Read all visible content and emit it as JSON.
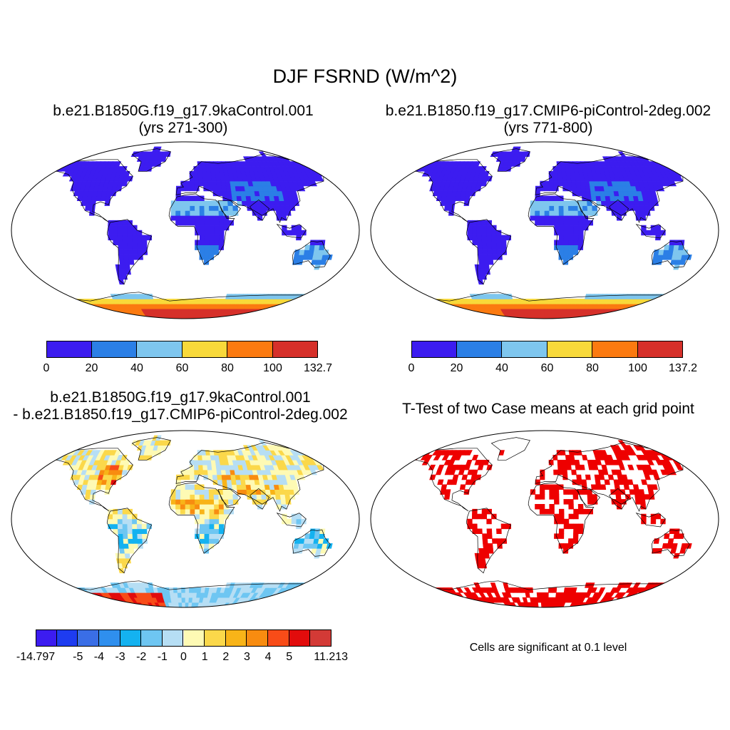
{
  "title": "DJF FSRND (W/m^2)",
  "panels": {
    "case1": {
      "title_line1": "b.e21.B1850G.f19_g17.9kaControl.001",
      "title_line2": "(yrs 271-300)",
      "colorbar": {
        "colors": [
          "#3c1cf0",
          "#2b7fe6",
          "#7ec6ee",
          "#f8d93a",
          "#fb7a10",
          "#d6302a"
        ],
        "ticks": [
          "0",
          "20",
          "40",
          "60",
          "80",
          "100",
          "132.7"
        ]
      }
    },
    "case2": {
      "title_line1": "b.e21.B1850.f19_g17.CMIP6-piControl-2deg.002",
      "title_line2": "(yrs 771-800)",
      "colorbar": {
        "colors": [
          "#3c1cf0",
          "#2b7fe6",
          "#7ec6ee",
          "#f8d93a",
          "#fb7a10",
          "#d6302a"
        ],
        "ticks": [
          "0",
          "20",
          "40",
          "60",
          "80",
          "100",
          "137.2"
        ]
      }
    },
    "diff": {
      "title_line1": "b.e21.B1850G.f19_g17.9kaControl.001",
      "title_line2": "- b.e21.B1850.f19_g17.CMIP6-piControl-2deg.002",
      "colorbar": {
        "colors": [
          "#3c1cf0",
          "#1e3cf0",
          "#3a6ee6",
          "#2f8fee",
          "#14b2f0",
          "#6ec6f2",
          "#b6def4",
          "#fefab4",
          "#fbd84a",
          "#f8b418",
          "#f88c10",
          "#f84c18",
          "#e20c0c",
          "#d33a36"
        ],
        "ticks": [
          "-14.797",
          "-5",
          "-4",
          "-3",
          "-2",
          "-1",
          "0",
          "1",
          "2",
          "3",
          "4",
          "5",
          "11.213"
        ]
      }
    },
    "ttest": {
      "title": "T-Test of two Case means at each grid point",
      "note": "Cells are significant at 0.1 level",
      "color": "#ee0000"
    }
  }
}
